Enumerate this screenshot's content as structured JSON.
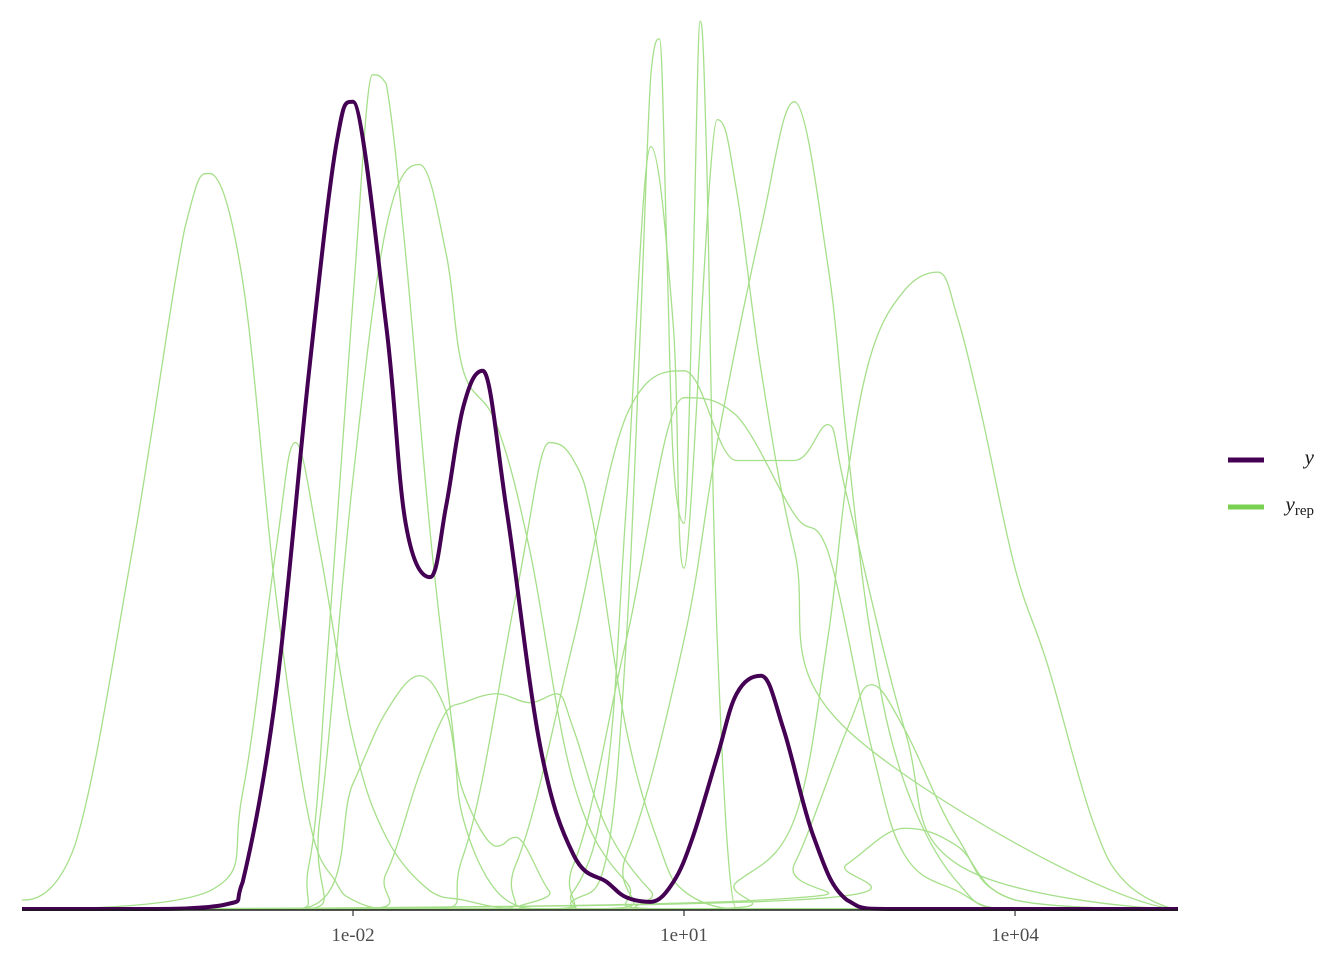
{
  "chart_data": {
    "type": "line",
    "title": "",
    "xlabel": "",
    "ylabel": "",
    "x_scale": "log10",
    "xlim": [
      1e-05,
      300000.0
    ],
    "ylim": [
      0,
      1
    ],
    "x_ticks": [
      0.01,
      10,
      10000
    ],
    "x_tick_labels": [
      "1e-02",
      "1e+01",
      "1e+04"
    ],
    "grid": false,
    "legend_position": "right",
    "legend": [
      {
        "key": "y",
        "label": "y",
        "subscript": "",
        "color": "#440154"
      },
      {
        "key": "yrep",
        "label": "y",
        "subscript": "rep",
        "color": "#7ad151"
      }
    ],
    "colors": {
      "y": "#440154",
      "yrep": "#a6df8a"
    },
    "series": [
      {
        "legend_key": "y",
        "x": [
          1e-05,
          0.0001,
          0.0007,
          0.001,
          0.002,
          0.004,
          0.007,
          0.01,
          0.02,
          0.03,
          0.05,
          0.07,
          0.1,
          0.15,
          0.25,
          0.5,
          1,
          2,
          3,
          5,
          8,
          12,
          20,
          30,
          50,
          80,
          150,
          300,
          1000,
          100000.0,
          300000.0
        ],
        "y": [
          0,
          0,
          0.005,
          0.03,
          0.24,
          0.6,
          0.85,
          0.9,
          0.65,
          0.43,
          0.37,
          0.45,
          0.56,
          0.6,
          0.44,
          0.18,
          0.06,
          0.03,
          0.013,
          0.008,
          0.03,
          0.08,
          0.17,
          0.24,
          0.26,
          0.2,
          0.08,
          0.01,
          0,
          0,
          0
        ]
      },
      {
        "legend_key": "yrep",
        "x": [
          1e-05,
          3e-05,
          0.0001,
          0.0003,
          0.0005,
          0.001,
          0.002,
          0.004,
          0.007,
          0.01,
          0.02,
          0.05,
          0.1,
          1,
          300000.0
        ],
        "y": [
          0.01,
          0.07,
          0.4,
          0.76,
          0.82,
          0.7,
          0.35,
          0.1,
          0.03,
          0.01,
          0,
          0,
          0,
          0,
          0
        ]
      },
      {
        "legend_key": "yrep",
        "x": [
          1e-05,
          0.0005,
          0.001,
          0.002,
          0.003,
          0.005,
          0.01,
          0.02,
          0.05,
          0.1,
          0.3,
          1,
          300000.0
        ],
        "y": [
          0,
          0.02,
          0.13,
          0.4,
          0.52,
          0.4,
          0.19,
          0.08,
          0.02,
          0.01,
          0,
          0,
          0
        ]
      },
      {
        "legend_key": "yrep",
        "x": [
          1e-05,
          0.002,
          0.004,
          0.006,
          0.01,
          0.015,
          0.02,
          0.03,
          0.05,
          0.08,
          0.1,
          0.2,
          0.5,
          1,
          300000.0
        ],
        "y": [
          0,
          0,
          0.05,
          0.3,
          0.68,
          0.93,
          0.92,
          0.73,
          0.42,
          0.2,
          0.1,
          0.02,
          0,
          0,
          0
        ]
      },
      {
        "legend_key": "yrep",
        "x": [
          1e-05,
          0.003,
          0.005,
          0.01,
          0.02,
          0.04,
          0.07,
          0.1,
          0.2,
          0.4,
          1,
          3,
          10,
          300000.0
        ],
        "y": [
          0,
          0,
          0.1,
          0.48,
          0.76,
          0.83,
          0.73,
          0.6,
          0.54,
          0.4,
          0.14,
          0.03,
          0,
          0
        ]
      },
      {
        "legend_key": "yrep",
        "x": [
          1e-05,
          0.003,
          0.01,
          0.02,
          0.04,
          0.07,
          0.1,
          0.2,
          0.3,
          0.6,
          1,
          300000.0
        ],
        "y": [
          0,
          0,
          0.14,
          0.22,
          0.26,
          0.22,
          0.13,
          0.07,
          0.08,
          0.02,
          0,
          0
        ]
      },
      {
        "legend_key": "yrep",
        "x": [
          1e-05,
          0.01,
          0.02,
          0.04,
          0.07,
          0.1,
          0.2,
          0.4,
          0.7,
          1,
          2,
          5,
          10,
          300000.0
        ],
        "y": [
          0,
          0,
          0.04,
          0.15,
          0.22,
          0.23,
          0.24,
          0.23,
          0.24,
          0.2,
          0.09,
          0.02,
          0,
          0
        ]
      },
      {
        "legend_key": "yrep",
        "x": [
          1e-05,
          0.03,
          0.1,
          0.3,
          0.6,
          1,
          1.5,
          3,
          6,
          10,
          30,
          100,
          300000.0
        ],
        "y": [
          0,
          0,
          0.06,
          0.35,
          0.52,
          0.5,
          0.43,
          0.2,
          0.07,
          0.02,
          0,
          0,
          0
        ]
      },
      {
        "legend_key": "yrep",
        "x": [
          1e-05,
          0.3,
          1,
          2,
          3,
          4,
          5,
          6,
          7,
          8,
          10,
          12,
          14,
          16,
          20,
          30,
          50,
          300000.0
        ],
        "y": [
          0,
          0,
          0.01,
          0.06,
          0.3,
          0.64,
          0.93,
          0.97,
          0.73,
          0.5,
          0.43,
          0.7,
          0.99,
          0.84,
          0.3,
          0,
          0,
          0
        ]
      },
      {
        "legend_key": "yrep",
        "x": [
          1e-05,
          0.3,
          1,
          2,
          3,
          5,
          8,
          10,
          20,
          30,
          50,
          100,
          300,
          300000.0
        ],
        "y": [
          0,
          0,
          0.02,
          0.15,
          0.45,
          0.85,
          0.65,
          0.38,
          0.88,
          0.8,
          0.6,
          0.4,
          0.2,
          0
        ]
      },
      {
        "legend_key": "yrep",
        "x": [
          1e-05,
          0.1,
          0.3,
          1,
          3,
          10,
          30,
          100,
          200,
          300,
          1000,
          3000,
          300000.0
        ],
        "y": [
          0,
          0,
          0.05,
          0.3,
          0.55,
          0.6,
          0.5,
          0.5,
          0.54,
          0.46,
          0.2,
          0.05,
          0
        ]
      },
      {
        "legend_key": "yrep",
        "x": [
          1e-05,
          0.3,
          1,
          3,
          10,
          30,
          100,
          200,
          500,
          1000,
          3000,
          10000.0,
          300000.0
        ],
        "y": [
          0,
          0,
          0.05,
          0.3,
          0.57,
          0.55,
          0.44,
          0.4,
          0.18,
          0.06,
          0.02,
          0,
          0
        ]
      },
      {
        "legend_key": "yrep",
        "x": [
          1e-05,
          1,
          3,
          10,
          20,
          50,
          100,
          200,
          300,
          500,
          1000,
          3000,
          10000.0,
          300000.0
        ],
        "y": [
          0,
          0,
          0.06,
          0.3,
          0.52,
          0.76,
          0.9,
          0.72,
          0.52,
          0.3,
          0.14,
          0.03,
          0,
          0
        ]
      },
      {
        "legend_key": "yrep",
        "x": [
          1e-05,
          10,
          30,
          100,
          200,
          300,
          500,
          1000,
          2000,
          3000,
          5000,
          10000.0,
          20000.0,
          50000.0,
          100000.0,
          300000.0
        ],
        "y": [
          0,
          0,
          0.03,
          0.1,
          0.3,
          0.48,
          0.62,
          0.69,
          0.71,
          0.66,
          0.55,
          0.38,
          0.27,
          0.1,
          0.03,
          0
        ]
      },
      {
        "legend_key": "yrep",
        "x": [
          1e-05,
          50,
          100,
          300,
          500,
          1000,
          3000,
          10000.0,
          300000.0
        ],
        "y": [
          0,
          0.01,
          0.05,
          0.2,
          0.25,
          0.2,
          0.08,
          0.01,
          0
        ]
      },
      {
        "legend_key": "yrep",
        "x": [
          1e-05,
          100,
          300,
          1000,
          3000,
          10000.0,
          300000.0
        ],
        "y": [
          0,
          0.01,
          0.05,
          0.09,
          0.07,
          0.01,
          0
        ]
      }
    ]
  }
}
